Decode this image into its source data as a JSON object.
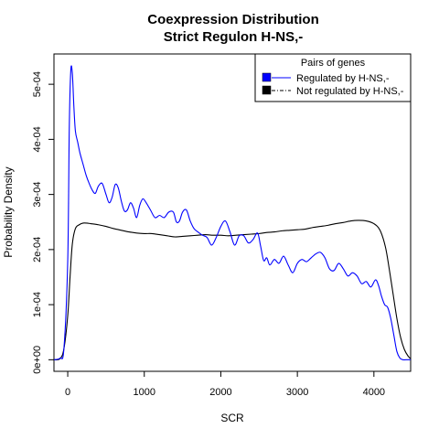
{
  "chart_data": {
    "type": "line",
    "title": "Coexpression Distribution",
    "subtitle": "Strict Regulon H-NS,-",
    "xlabel": "SCR",
    "ylabel": "Probability Density",
    "xlim": [
      -180,
      4480
    ],
    "ylim": [
      -2.1e-05,
      0.000555
    ],
    "x_ticks": [
      0,
      1000,
      2000,
      3000,
      4000
    ],
    "x_tick_labels": [
      "0",
      "1000",
      "2000",
      "3000",
      "4000"
    ],
    "y_ticks": [
      0,
      0.0001,
      0.0002,
      0.0003,
      0.0004,
      0.0005
    ],
    "y_tick_labels": [
      "0e+00",
      "1e-04",
      "2e-04",
      "3e-04",
      "4e-04",
      "5e-04"
    ],
    "grid": false,
    "legend": {
      "title": "Pairs of genes",
      "position": "top-right",
      "entries": [
        "Regulated by  H-NS,-",
        "Not regulated by  H-NS,-"
      ]
    },
    "series": [
      {
        "name": "Regulated by  H-NS,-",
        "color": "#0000ff",
        "line_style": "solid",
        "x": [
          -180,
          -100,
          -50,
          0,
          20,
          40,
          60,
          80,
          100,
          130,
          160,
          200,
          240,
          280,
          320,
          360,
          400,
          450,
          500,
          540,
          580,
          620,
          660,
          700,
          740,
          780,
          820,
          860,
          900,
          940,
          980,
          1020,
          1080,
          1140,
          1200,
          1260,
          1320,
          1380,
          1420,
          1460,
          1500,
          1550,
          1600,
          1650,
          1700,
          1760,
          1820,
          1880,
          1940,
          2000,
          2060,
          2120,
          2180,
          2240,
          2300,
          2360,
          2420,
          2480,
          2520,
          2560,
          2600,
          2640,
          2700,
          2760,
          2820,
          2880,
          2940,
          3000,
          3060,
          3120,
          3180,
          3240,
          3300,
          3360,
          3420,
          3480,
          3540,
          3600,
          3660,
          3720,
          3780,
          3840,
          3900,
          3960,
          4020,
          4060,
          4100,
          4140,
          4180,
          4220,
          4260,
          4300,
          4340,
          4380,
          4420,
          4480
        ],
        "y": [
          0.0,
          3e-06,
          2e-05,
          0.00018,
          0.00042,
          0.000525,
          0.00052,
          0.00046,
          0.000415,
          0.000395,
          0.000375,
          0.000355,
          0.000335,
          0.00032,
          0.000308,
          0.000302,
          0.000315,
          0.00032,
          0.0003,
          0.000285,
          0.000295,
          0.000318,
          0.000312,
          0.000288,
          0.00027,
          0.000272,
          0.000285,
          0.000275,
          0.000258,
          0.00028,
          0.000292,
          0.000286,
          0.000272,
          0.000258,
          0.000262,
          0.000258,
          0.000268,
          0.000268,
          0.00025,
          0.000252,
          0.000268,
          0.000272,
          0.000252,
          0.000238,
          0.000232,
          0.000226,
          0.000222,
          0.000208,
          0.000222,
          0.000242,
          0.000252,
          0.000232,
          0.000208,
          0.000225,
          0.000225,
          0.000212,
          0.000218,
          0.00023,
          0.000206,
          0.00018,
          0.000185,
          0.000172,
          0.000182,
          0.000175,
          0.000188,
          0.000172,
          0.000158,
          0.000175,
          0.000182,
          0.000178,
          0.000185,
          0.000192,
          0.000195,
          0.000185,
          0.000165,
          0.000162,
          0.000175,
          0.000165,
          0.000152,
          0.000158,
          0.000152,
          0.000138,
          0.000142,
          0.000132,
          0.000145,
          0.000135,
          0.000115,
          0.0001,
          9.5e-05,
          7.5e-05,
          4.5e-05,
          1.5e-05,
          3e-06,
          0.0,
          0.0,
          0.0
        ]
      },
      {
        "name": "Not regulated by  H-NS,-",
        "color": "#000000",
        "line_style": "solid",
        "x": [
          -180,
          -100,
          -50,
          0,
          30,
          60,
          100,
          150,
          200,
          250,
          300,
          400,
          500,
          600,
          700,
          800,
          900,
          1000,
          1100,
          1200,
          1300,
          1400,
          1500,
          1600,
          1700,
          1800,
          1900,
          2000,
          2100,
          2200,
          2300,
          2400,
          2500,
          2600,
          2700,
          2800,
          2900,
          3000,
          3100,
          3200,
          3300,
          3400,
          3500,
          3600,
          3700,
          3800,
          3900,
          4000,
          4080,
          4150,
          4200,
          4250,
          4300,
          4350,
          4400,
          4450,
          4480
        ],
        "y": [
          0.0,
          2e-06,
          2e-05,
          8e-05,
          0.00015,
          0.00021,
          0.000238,
          0.000245,
          0.000248,
          0.000248,
          0.000247,
          0.000245,
          0.000242,
          0.000238,
          0.000235,
          0.000232,
          0.00023,
          0.000229,
          0.000229,
          0.000227,
          0.000225,
          0.000223,
          0.000224,
          0.000225,
          0.000226,
          0.000227,
          0.000226,
          0.000226,
          0.000225,
          0.000226,
          0.000227,
          0.000228,
          0.000229,
          0.000231,
          0.000232,
          0.000234,
          0.000235,
          0.000236,
          0.000237,
          0.00024,
          0.000242,
          0.000244,
          0.000247,
          0.000249,
          0.000252,
          0.000253,
          0.000252,
          0.000247,
          0.000235,
          0.000205,
          0.000165,
          0.00012,
          7.5e-05,
          4e-05,
          1.8e-05,
          6e-06,
          2e-06
        ]
      }
    ]
  }
}
